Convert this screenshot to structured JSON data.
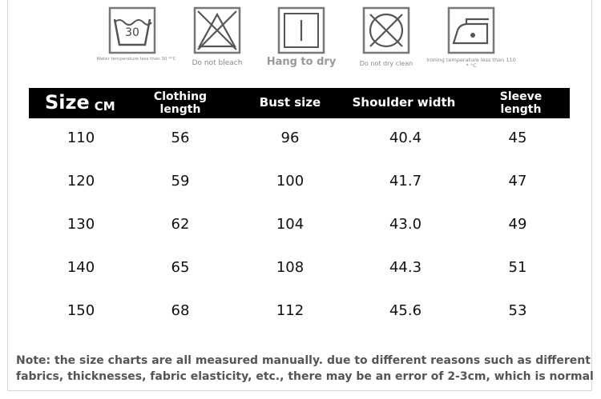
{
  "care": [
    {
      "icon": "wash-30-icon",
      "label": "Water temperature less than 30 *°C",
      "symbol_text": "30"
    },
    {
      "icon": "no-bleach-icon",
      "label": "Do not bleach"
    },
    {
      "icon": "hang-dry-icon",
      "label": "Hang to dry"
    },
    {
      "icon": "no-dry-clean-icon",
      "label": "Do not dry clean"
    },
    {
      "icon": "iron-icon",
      "label": "Ironing temperature less than 110 * °C"
    }
  ],
  "table": {
    "size_label": "Size",
    "unit_label": "CM",
    "headers": [
      "Clothing length",
      "Bust size",
      "Shoulder width",
      "Sleeve length"
    ],
    "rows": [
      [
        "110",
        "56",
        "96",
        "40.4",
        "45"
      ],
      [
        "120",
        "59",
        "100",
        "41.7",
        "47"
      ],
      [
        "130",
        "62",
        "104",
        "43.0",
        "49"
      ],
      [
        "140",
        "65",
        "108",
        "44.3",
        "51"
      ],
      [
        "150",
        "68",
        "112",
        "45.6",
        "53"
      ]
    ]
  },
  "note": {
    "line1": "Note: the size charts are all measured manually. due to different reasons such as different",
    "line2": "fabrics, thicknesses, fabric elasticity, etc., there may be an error of 2-3cm, which is normal"
  }
}
